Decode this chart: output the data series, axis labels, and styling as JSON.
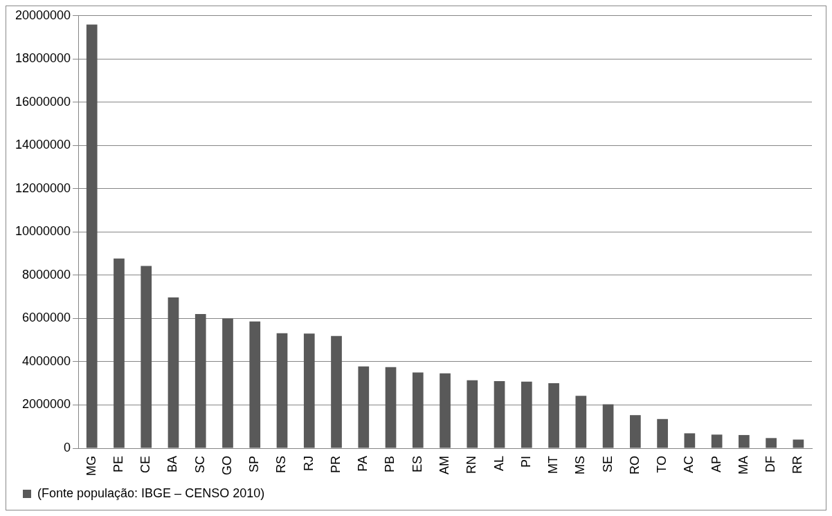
{
  "chart_data": {
    "type": "bar",
    "categories": [
      "MG",
      "PE",
      "CE",
      "BA",
      "SC",
      "GO",
      "SP",
      "RS",
      "RJ",
      "PR",
      "PA",
      "PB",
      "ES",
      "AM",
      "RN",
      "AL",
      "PI",
      "MT",
      "MS",
      "SE",
      "RO",
      "TO",
      "AC",
      "AP",
      "MA",
      "DF",
      "RR"
    ],
    "series": [
      {
        "name": "(Fonte população: IBGE – CENSO 2010)",
        "color": "#595959",
        "values": [
          19590000,
          8770000,
          8430000,
          6970000,
          6210000,
          6000000,
          5860000,
          5320000,
          5300000,
          5190000,
          3780000,
          3750000,
          3500000,
          3460000,
          3140000,
          3100000,
          3080000,
          3010000,
          2420000,
          2030000,
          1530000,
          1350000,
          690000,
          630000,
          610000,
          470000,
          400000
        ]
      }
    ],
    "ylim": [
      0,
      20000000
    ],
    "yticks": [
      0,
      2000000,
      4000000,
      6000000,
      8000000,
      10000000,
      12000000,
      14000000,
      16000000,
      18000000,
      20000000
    ],
    "grid": "y",
    "legend": "bottom left"
  }
}
